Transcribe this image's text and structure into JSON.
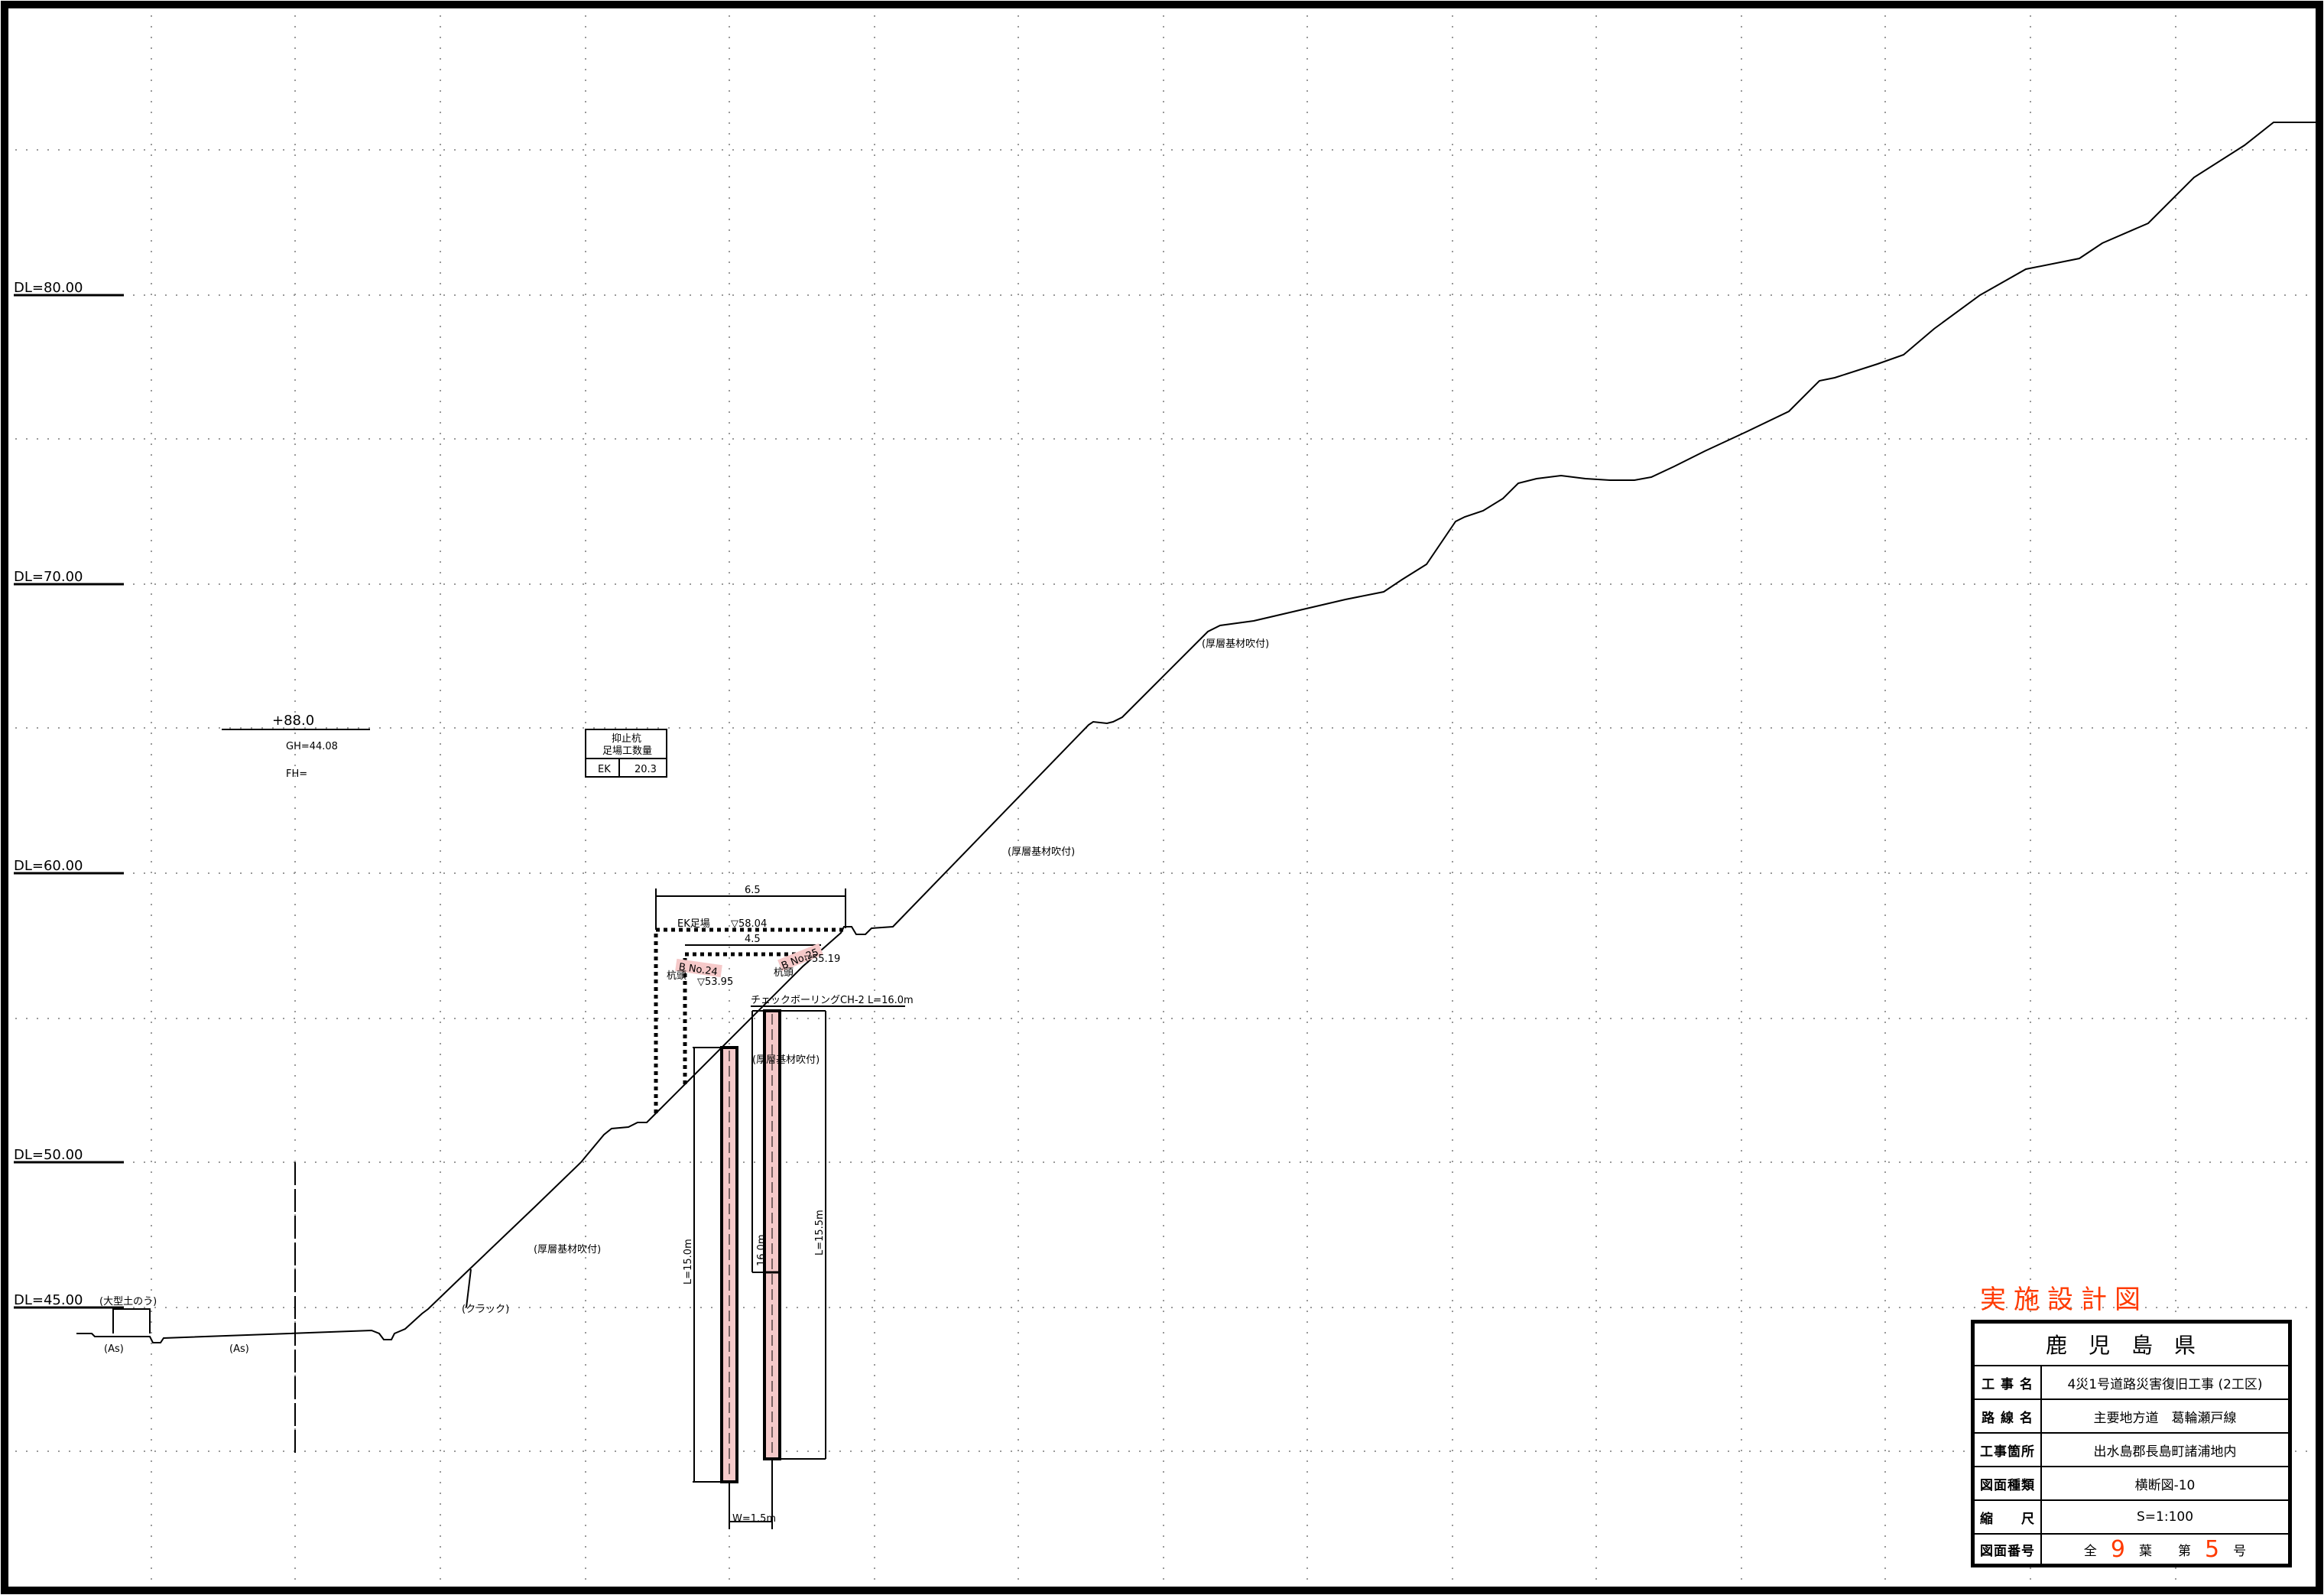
{
  "datum_labels": [
    "DL=80.00",
    "DL=70.00",
    "DL=60.00",
    "DL=50.00",
    "DL=45.00"
  ],
  "station": {
    "label": "+88.0",
    "ground_height": "GH=44.08",
    "formation_height": "FH="
  },
  "quantity_box": {
    "title_line1": "抑止杭",
    "title_line2": "足場工数量",
    "row_key": "EK",
    "row_value": "20.3"
  },
  "annotations": {
    "spray_upper": "(厚層基材吹付)",
    "spray_mid": "(厚層基材吹付)",
    "spray_lower": "(厚層基材吹付)",
    "spray_pile": "(厚層基材吹付)",
    "crack": "(クラック)",
    "sandbag": "(大型土のう)",
    "asphalt_left": "(As)",
    "asphalt_right": "(As)"
  },
  "dimensions": {
    "top_width": "6.5",
    "mid_width": "4.5",
    "scaffold_label": "EK足場",
    "scaffold_level": "▽58.04",
    "pile_left_no": "B No.24",
    "pile_left_level": "▽53.95",
    "pile_right_no": "B No.25",
    "pile_right_level": "▽55.19",
    "pile_left_tag": "杭頭",
    "pile_right_tag": "杭頭",
    "boring": "チェックボーリングCH-2 L=16.0m",
    "pile_left_length": "L=15.0m",
    "pile_mid_length": "16.0m",
    "pile_right_length": "L=15.5m",
    "pile_spacing": "W=1.5m"
  },
  "title_block": {
    "stamp": "実施設計図",
    "header": "鹿児島県",
    "rows": [
      {
        "key": "工 事 名",
        "value": "4災1号道路災害復旧工事 (2工区)"
      },
      {
        "key": "路 線 名",
        "value": "主要地方道　葛輪瀬戸線"
      },
      {
        "key": "工事箇所",
        "value": "出水島郡長島町諸浦地内"
      },
      {
        "key": "図面種類",
        "value": "横断図-10"
      },
      {
        "key": "縮　　尺",
        "value": "S=1:100"
      }
    ],
    "number_key": "図面番号",
    "number_parts": {
      "all": "全",
      "total": "9",
      "sheet": "葉",
      "dai": "第",
      "current": "5",
      "go": "号"
    }
  },
  "colors": {
    "pile_fill": "#f5c9c9",
    "stamp": "#ff3a00",
    "line": "#000000",
    "grid": "#9a9a9a"
  }
}
